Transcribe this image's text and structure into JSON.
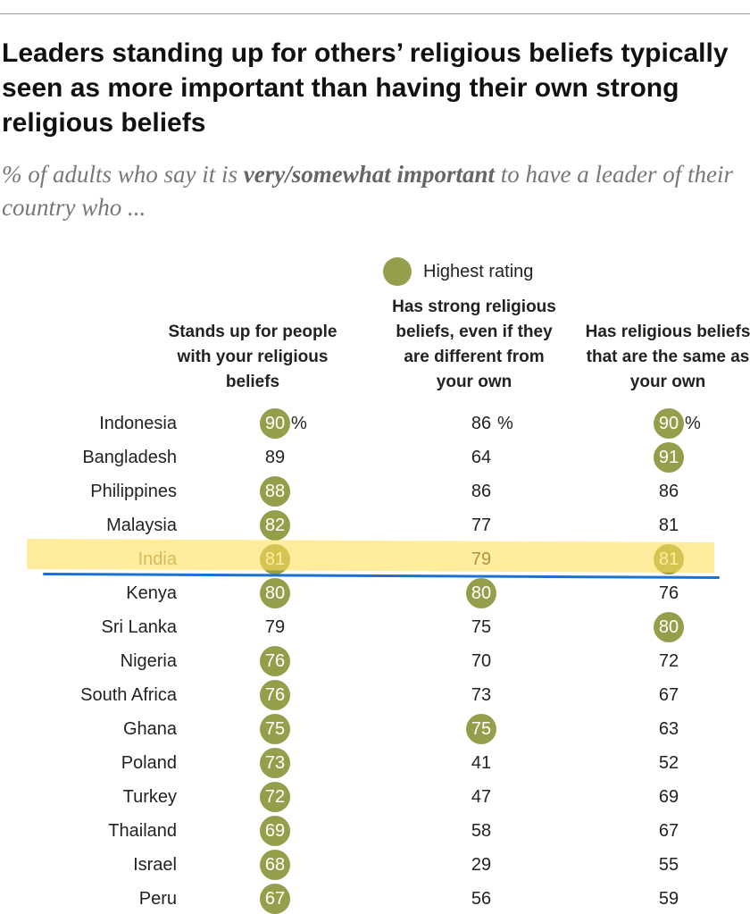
{
  "title": "Leaders standing up for others’ religious beliefs typically seen as more important than having their own strong religious beliefs",
  "subtitle": {
    "before": "% of adults who say it is ",
    "emphasis": "very/somewhat important",
    "after": " to have a leader of their country who ..."
  },
  "legend": "Highest rating",
  "highlight_color": "#959e4a",
  "unit": "%",
  "columns": [
    "Stands up for people with your religious beliefs",
    "Has strong religious beliefs, even if they are different from your own",
    "Has religious beliefs that are the same as your own"
  ],
  "rows": [
    {
      "country": "Indonesia",
      "values": [
        90,
        86,
        90
      ]
    },
    {
      "country": "Bangladesh",
      "values": [
        89,
        64,
        91
      ]
    },
    {
      "country": "Philippines",
      "values": [
        88,
        86,
        86
      ]
    },
    {
      "country": "Malaysia",
      "values": [
        82,
        77,
        81
      ]
    },
    {
      "country": "India",
      "values": [
        81,
        79,
        81
      ],
      "marked": true
    },
    {
      "country": "Kenya",
      "values": [
        80,
        80,
        76
      ]
    },
    {
      "country": "Sri Lanka",
      "values": [
        79,
        75,
        80
      ]
    },
    {
      "country": "Nigeria",
      "values": [
        76,
        70,
        72
      ]
    },
    {
      "country": "South Africa",
      "values": [
        76,
        73,
        67
      ]
    },
    {
      "country": "Ghana",
      "values": [
        75,
        75,
        63
      ]
    },
    {
      "country": "Poland",
      "values": [
        73,
        41,
        52
      ]
    },
    {
      "country": "Turkey",
      "values": [
        72,
        47,
        69
      ]
    },
    {
      "country": "Thailand",
      "values": [
        69,
        58,
        67
      ]
    },
    {
      "country": "Israel",
      "values": [
        68,
        29,
        55
      ]
    },
    {
      "country": "Peru",
      "values": [
        67,
        56,
        59
      ]
    }
  ]
}
